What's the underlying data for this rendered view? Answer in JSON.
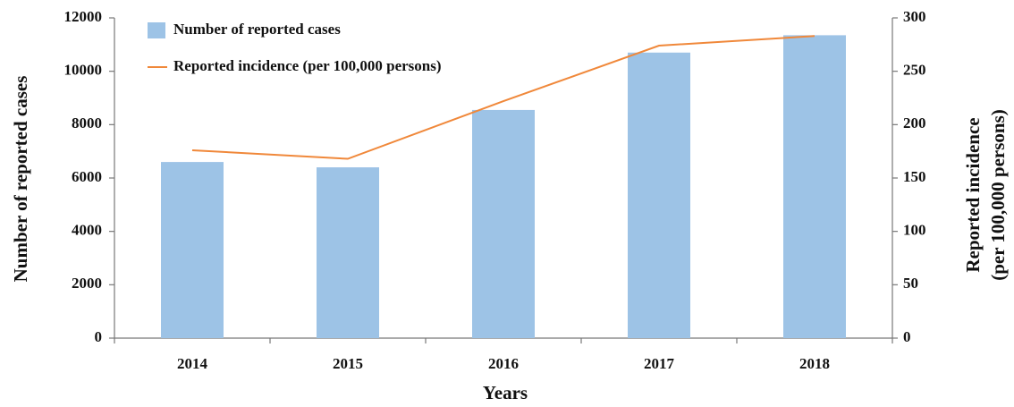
{
  "chart_data": {
    "type": "bar",
    "categories": [
      "2014",
      "2015",
      "2016",
      "2017",
      "2018"
    ],
    "series": [
      {
        "name": "Number of reported cases",
        "type": "bar",
        "color": "#9dc3e6",
        "values": [
          6600,
          6400,
          8550,
          10700,
          11350
        ]
      },
      {
        "name": "Reported incidence (per 100,000 persons)",
        "type": "line",
        "axis": "y2",
        "color": "#f0883a",
        "values": [
          176,
          168,
          222,
          274,
          283
        ]
      }
    ],
    "xlabel": "Years",
    "ylabel": "Number of reported cases",
    "y2label": [
      "Reported incidence",
      "(per 100,000 persons)"
    ],
    "ylim": [
      0,
      12000
    ],
    "yticks": [
      0,
      2000,
      4000,
      6000,
      8000,
      10000,
      12000
    ],
    "y2lim": [
      0,
      300
    ],
    "y2ticks": [
      0,
      50,
      100,
      150,
      200,
      250,
      300
    ],
    "grid": false,
    "legend": "upper left"
  }
}
